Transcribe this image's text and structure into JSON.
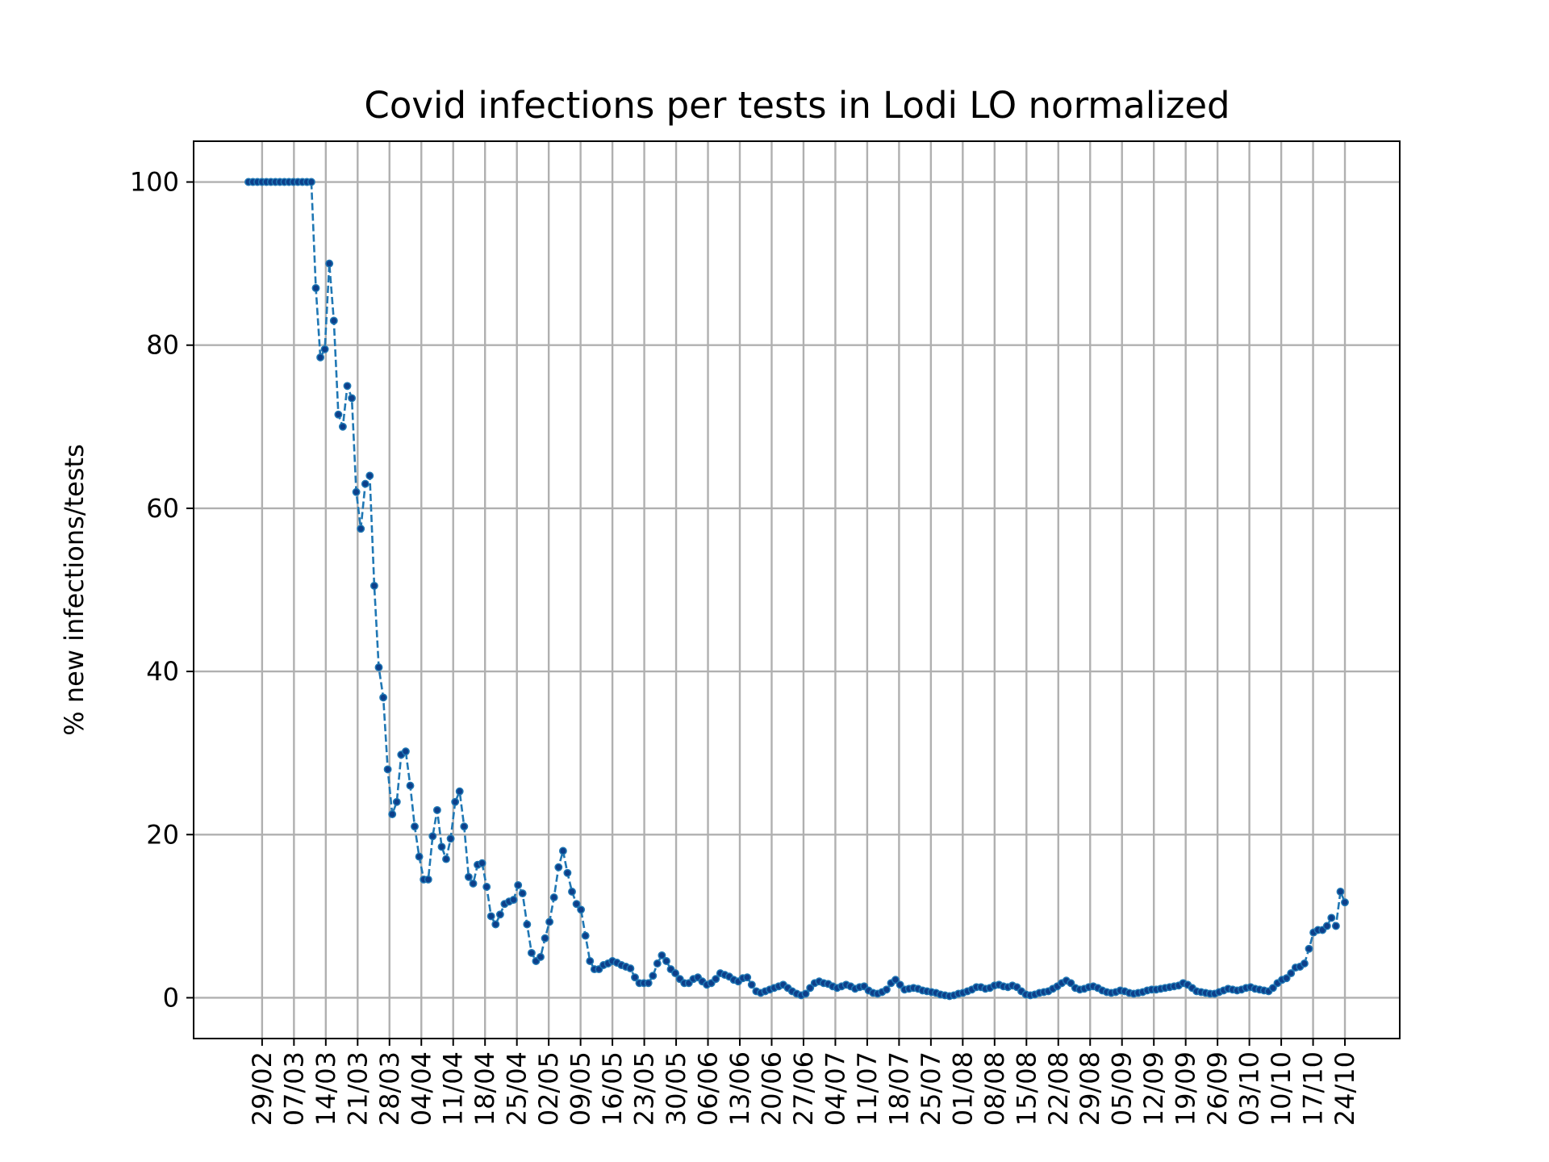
{
  "chart_data": {
    "type": "line",
    "title": "Covid infections per tests in Lodi LO normalized",
    "xlabel": "",
    "ylabel": "% new infections/tests",
    "ylim": [
      -5,
      105
    ],
    "yticks": [
      0,
      20,
      40,
      60,
      80,
      100
    ],
    "grid": true,
    "x_start": "2020-02-26",
    "x_end": "2020-10-24",
    "xtick_labels": [
      "29/02",
      "07/03",
      "14/03",
      "21/03",
      "28/03",
      "04/04",
      "11/04",
      "18/04",
      "25/04",
      "02/05",
      "09/05",
      "16/05",
      "23/05",
      "30/05",
      "06/06",
      "13/06",
      "20/06",
      "27/06",
      "04/07",
      "11/07",
      "18/07",
      "25/07",
      "01/08",
      "08/08",
      "15/08",
      "22/08",
      "29/08",
      "05/09",
      "12/09",
      "19/09",
      "26/09",
      "03/10",
      "10/10",
      "17/10",
      "24/10"
    ],
    "series": [
      {
        "name": "",
        "color": "#1f77b4",
        "marker_color": "#0d3f8a",
        "line_style": "dashed",
        "values": [
          100,
          100,
          100,
          100,
          100,
          100,
          100,
          100,
          100,
          100,
          100,
          100,
          100,
          100,
          100,
          87,
          78.5,
          79.5,
          90,
          83,
          71.5,
          70,
          75,
          73.5,
          62,
          57.5,
          63,
          64,
          50.5,
          40.5,
          36.8,
          28,
          22.5,
          24,
          29.8,
          30.2,
          26,
          21,
          17.3,
          14.5,
          14.5,
          19.8,
          23,
          18.5,
          17,
          19.5,
          24,
          25.3,
          21,
          14.8,
          14,
          16.3,
          16.5,
          13.6,
          10,
          9,
          10.2,
          11.5,
          11.8,
          12,
          13.8,
          12.8,
          9,
          5.5,
          4.5,
          5,
          7.3,
          9.3,
          12.3,
          16,
          18,
          15.3,
          13,
          11.5,
          10.8,
          7.6,
          4.5,
          3.5,
          3.5,
          4,
          4.2,
          4.5,
          4.3,
          4,
          3.8,
          3.6,
          2.5,
          1.8,
          1.8,
          1.8,
          2.7,
          4.2,
          5.2,
          4.5,
          3.5,
          3,
          2.3,
          1.8,
          1.8,
          2.3,
          2.5,
          2,
          1.6,
          1.8,
          2.3,
          3,
          2.8,
          2.6,
          2.2,
          2,
          2.4,
          2.5,
          1.6,
          0.8,
          0.6,
          0.8,
          1,
          1.2,
          1.4,
          1.6,
          1.2,
          0.8,
          0.5,
          0.3,
          0.5,
          1.2,
          1.8,
          2,
          1.8,
          1.7,
          1.4,
          1.2,
          1.4,
          1.6,
          1.4,
          1.1,
          1.3,
          1.4,
          0.9,
          0.6,
          0.5,
          0.7,
          1,
          1.8,
          2.2,
          1.6,
          1,
          1.1,
          1.2,
          1.1,
          0.9,
          0.8,
          0.7,
          0.6,
          0.4,
          0.3,
          0.2,
          0.3,
          0.5,
          0.6,
          0.8,
          1,
          1.3,
          1.3,
          1.1,
          1.2,
          1.5,
          1.6,
          1.4,
          1.3,
          1.5,
          1.3,
          0.8,
          0.4,
          0.3,
          0.4,
          0.6,
          0.7,
          0.8,
          1.1,
          1.4,
          1.8,
          2.1,
          1.8,
          1.2,
          1,
          1.1,
          1.3,
          1.4,
          1.2,
          0.9,
          0.7,
          0.6,
          0.7,
          0.9,
          0.8,
          0.6,
          0.5,
          0.6,
          0.7,
          0.9,
          1,
          1,
          1.1,
          1.2,
          1.3,
          1.4,
          1.5,
          1.8,
          1.6,
          1.2,
          0.8,
          0.7,
          0.6,
          0.5,
          0.5,
          0.7,
          0.9,
          1.1,
          1,
          0.9,
          1,
          1.2,
          1.3,
          1.1,
          1,
          0.9,
          0.8,
          1.2,
          1.8,
          2.2,
          2.4,
          3,
          3.7,
          3.8,
          4.2,
          6,
          8,
          8.3,
          8.3,
          8.8,
          9.8,
          8.8,
          13,
          11.7
        ]
      }
    ]
  }
}
